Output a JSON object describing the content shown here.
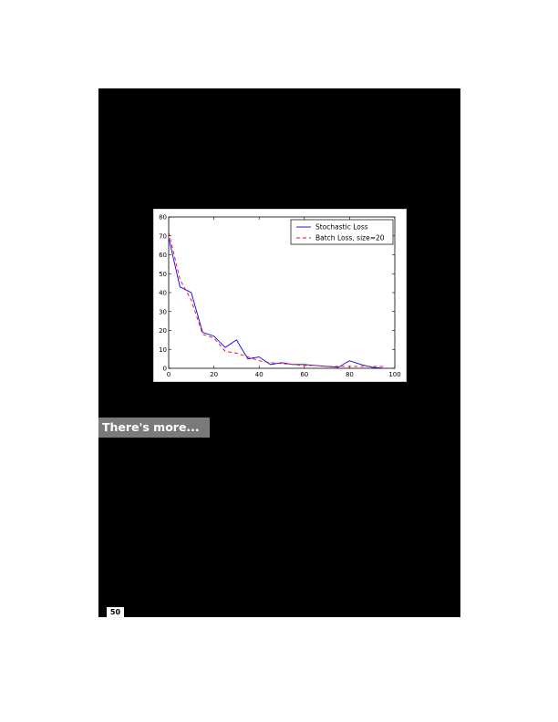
{
  "section": {
    "heading": "There's more..."
  },
  "page": {
    "number": "50"
  },
  "chart_data": {
    "type": "line",
    "title": "",
    "xlabel": "",
    "ylabel": "",
    "xlim": [
      0,
      100
    ],
    "ylim": [
      0,
      80
    ],
    "xticks": [
      "0",
      "20",
      "40",
      "60",
      "80",
      "100"
    ],
    "yticks": [
      "0",
      "10",
      "20",
      "30",
      "40",
      "50",
      "60",
      "70",
      "80"
    ],
    "legend_position": "top-right",
    "grid": false,
    "series": [
      {
        "name": "Stochastic Loss",
        "color": "#0000ff",
        "style": "solid",
        "x": [
          0,
          5,
          10,
          15,
          20,
          25,
          30,
          35,
          40,
          45,
          50,
          55,
          60,
          65,
          70,
          75,
          80,
          85,
          90,
          95
        ],
        "y": [
          69,
          43,
          40,
          19,
          17,
          11,
          15,
          5,
          6,
          2,
          3,
          2,
          2,
          1.5,
          1,
          0.5,
          4,
          2,
          0.5,
          0
        ]
      },
      {
        "name": "Batch Loss, size=20",
        "color": "#ff0000",
        "style": "dashed",
        "x": [
          0,
          5,
          10,
          15,
          20,
          25,
          30,
          35,
          40,
          45,
          50,
          55,
          60,
          65,
          70,
          75,
          80,
          85,
          90,
          95
        ],
        "y": [
          72,
          47,
          36,
          18,
          16,
          9,
          8,
          6,
          4,
          3,
          2.5,
          2,
          1.5,
          1.5,
          1,
          1,
          1,
          1,
          1,
          1
        ]
      }
    ]
  }
}
